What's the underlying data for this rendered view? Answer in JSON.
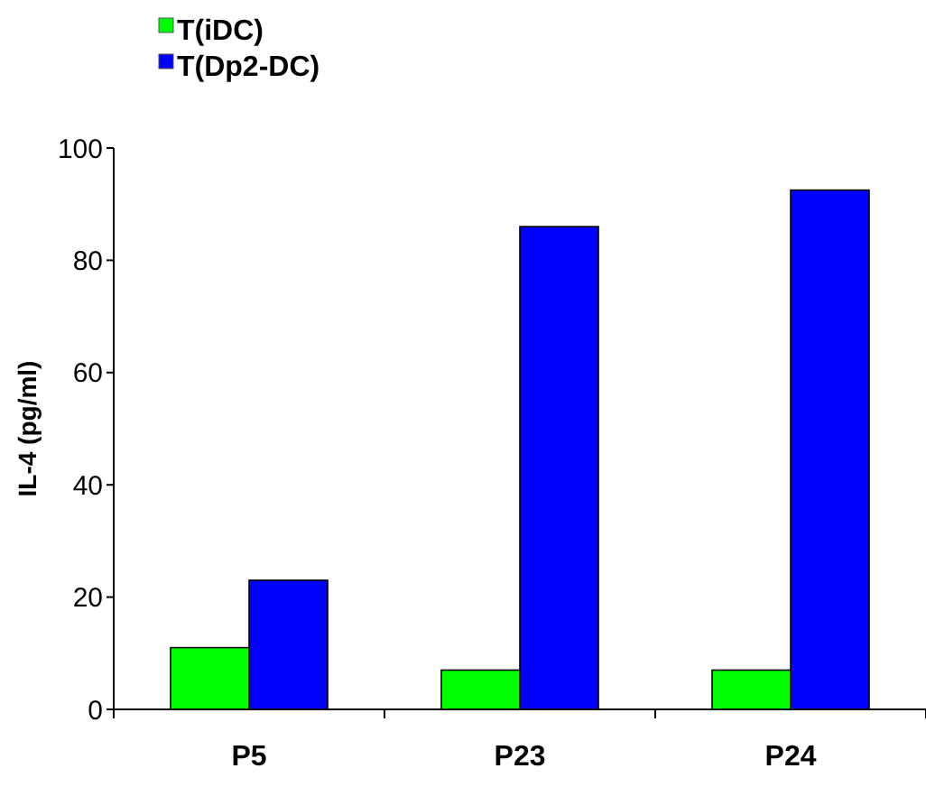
{
  "chart_data": {
    "type": "bar",
    "ylabel": "IL-4 (pg/ml)",
    "categories": [
      "P5",
      "P23",
      "P24"
    ],
    "series": [
      {
        "name": "T(iDC)",
        "color": "#00ff00",
        "values": [
          11,
          7,
          7
        ]
      },
      {
        "name": "T(Dp2-DC)",
        "color": "#0000ff",
        "values": [
          23,
          86,
          92.5
        ]
      }
    ],
    "ylim": [
      0,
      100
    ],
    "yticks": [
      0,
      20,
      40,
      60,
      80,
      100
    ],
    "grid": false,
    "legend": "top left"
  }
}
